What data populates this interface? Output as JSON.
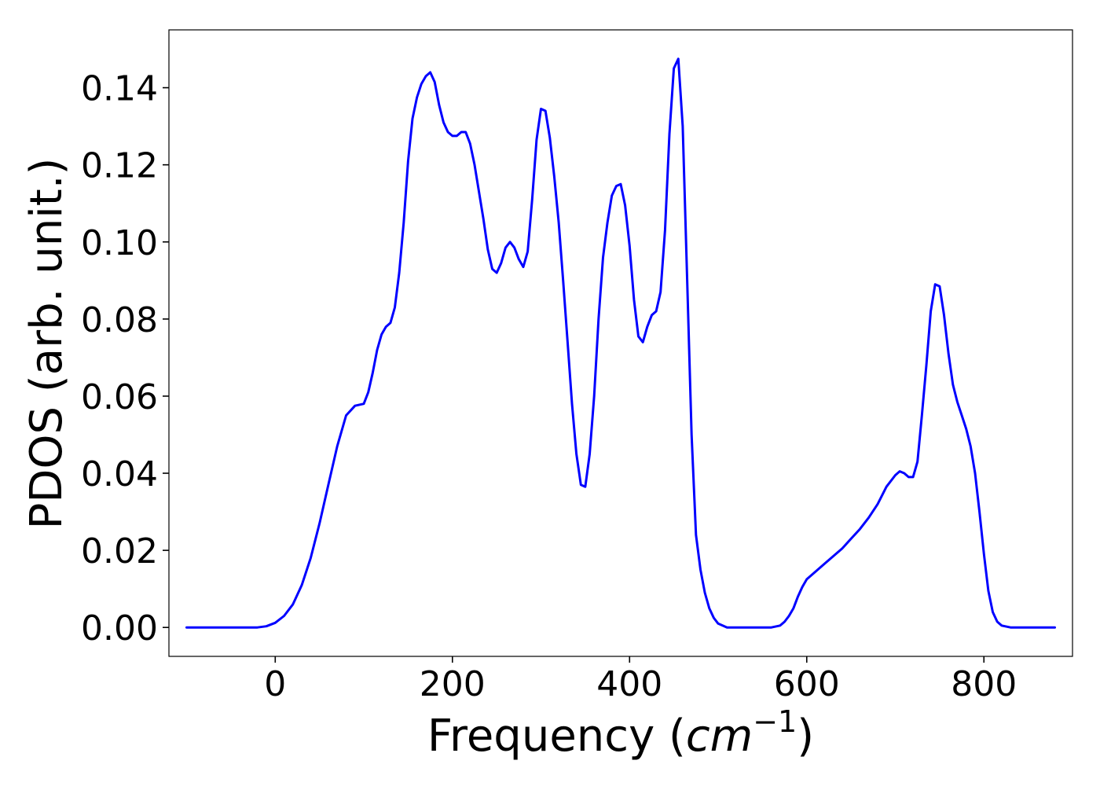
{
  "chart_data": {
    "type": "line",
    "xlabel": "Frequency",
    "xlabel_unit_base": "cm",
    "xlabel_unit_exp": "−1",
    "ylabel": "PDOS (arb. unit.)",
    "xlim": [
      -120,
      900
    ],
    "ylim": [
      -0.0075,
      0.155
    ],
    "x_ticks": [
      0,
      200,
      400,
      600,
      800
    ],
    "y_ticks": [
      0.0,
      0.02,
      0.04,
      0.06,
      0.08,
      0.1,
      0.12,
      0.14
    ],
    "x_tick_labels": [
      "0",
      "200",
      "400",
      "600",
      "800"
    ],
    "y_tick_labels": [
      "0.00",
      "0.02",
      "0.04",
      "0.06",
      "0.08",
      "0.10",
      "0.12",
      "0.14"
    ],
    "grid": false,
    "legend": "none",
    "line_color": "#0000ff",
    "series": [
      {
        "x": [
          -100,
          -60,
          -20,
          -10,
          0,
          10,
          20,
          30,
          40,
          50,
          60,
          70,
          80,
          90,
          100,
          105,
          110,
          115,
          120,
          125,
          130,
          135,
          140,
          145,
          150,
          155,
          160,
          165,
          170,
          175,
          180,
          185,
          190,
          195,
          200,
          205,
          210,
          215,
          220,
          225,
          230,
          235,
          240,
          245,
          250,
          255,
          260,
          265,
          270,
          275,
          280,
          285,
          290,
          295,
          300,
          305,
          310,
          315,
          320,
          325,
          330,
          335,
          340,
          345,
          350,
          355,
          360,
          365,
          370,
          375,
          380,
          385,
          390,
          395,
          400,
          405,
          410,
          415,
          420,
          425,
          430,
          435,
          440,
          445,
          450,
          455,
          460,
          465,
          470,
          475,
          480,
          485,
          490,
          495,
          500,
          510,
          530,
          560,
          570,
          575,
          580,
          585,
          590,
          595,
          600,
          610,
          620,
          630,
          640,
          650,
          660,
          670,
          680,
          690,
          700,
          705,
          710,
          715,
          720,
          725,
          730,
          735,
          740,
          745,
          750,
          755,
          760,
          765,
          770,
          775,
          780,
          785,
          790,
          795,
          800,
          805,
          810,
          815,
          820,
          830,
          850,
          880
        ],
        "y": [
          0.0,
          0.0,
          0.0,
          0.0003,
          0.0012,
          0.003,
          0.006,
          0.011,
          0.018,
          0.027,
          0.037,
          0.047,
          0.055,
          0.0575,
          0.058,
          0.061,
          0.066,
          0.072,
          0.076,
          0.078,
          0.079,
          0.083,
          0.092,
          0.105,
          0.121,
          0.132,
          0.1375,
          0.141,
          0.143,
          0.144,
          0.1415,
          0.1355,
          0.131,
          0.1285,
          0.1275,
          0.1275,
          0.1285,
          0.1285,
          0.1255,
          0.12,
          0.113,
          0.106,
          0.098,
          0.093,
          0.092,
          0.0945,
          0.0985,
          0.1,
          0.0985,
          0.0955,
          0.0935,
          0.0975,
          0.111,
          0.1265,
          0.1345,
          0.134,
          0.127,
          0.117,
          0.105,
          0.09,
          0.074,
          0.058,
          0.045,
          0.037,
          0.0365,
          0.045,
          0.06,
          0.08,
          0.096,
          0.105,
          0.112,
          0.1145,
          0.115,
          0.1095,
          0.099,
          0.085,
          0.0755,
          0.074,
          0.078,
          0.081,
          0.082,
          0.087,
          0.103,
          0.128,
          0.145,
          0.1475,
          0.13,
          0.09,
          0.05,
          0.024,
          0.015,
          0.009,
          0.005,
          0.0025,
          0.001,
          0.0,
          0.0,
          0.0,
          0.0005,
          0.0015,
          0.003,
          0.005,
          0.008,
          0.0105,
          0.0125,
          0.0145,
          0.0165,
          0.0185,
          0.0205,
          0.023,
          0.0255,
          0.0285,
          0.032,
          0.0365,
          0.0395,
          0.0405,
          0.04,
          0.039,
          0.039,
          0.043,
          0.055,
          0.068,
          0.082,
          0.089,
          0.0885,
          0.081,
          0.071,
          0.063,
          0.0585,
          0.055,
          0.0515,
          0.047,
          0.04,
          0.03,
          0.019,
          0.0095,
          0.004,
          0.0015,
          0.0005,
          0.0,
          0.0,
          0.0
        ]
      }
    ]
  }
}
